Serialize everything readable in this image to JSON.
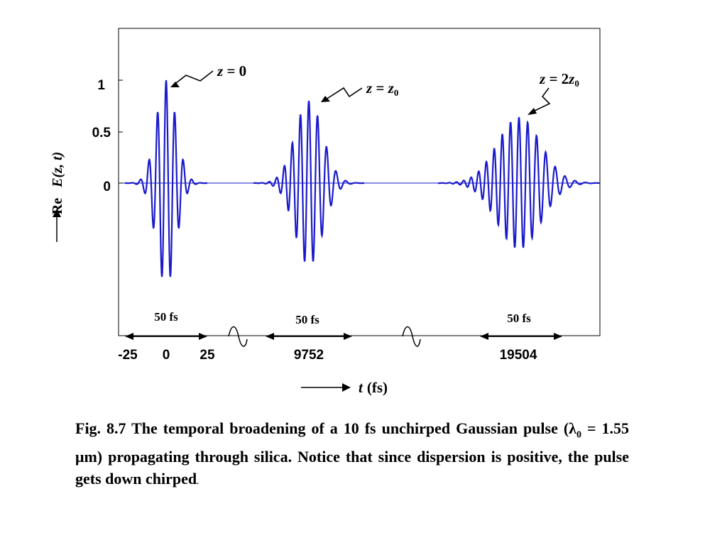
{
  "chart_data": {
    "type": "line",
    "ylabel_prefix": "Re",
    "ylabel_func": "E",
    "ylabel_args": "(z, t)",
    "xlabel_var": "t",
    "xlabel_unit": "(fs)",
    "ylim": [
      -1,
      1
    ],
    "yticks": [
      "1",
      "0.5",
      "0"
    ],
    "yticks_values": [
      1,
      0.5,
      0
    ],
    "xtick_labels": [
      "-25",
      "0",
      "25",
      "9752",
      "19504"
    ],
    "xtick_values": [
      -25,
      0,
      25,
      9752,
      19504
    ],
    "axis_breaks": 2,
    "carrier_period_fs": 5.2,
    "series": [
      {
        "label_var": "z",
        "label_eq": " = ",
        "label_rhs": "0",
        "label_sub": "",
        "center_fs": 0,
        "peak": 1.0,
        "duration_fs": 10,
        "span_label": "50 fs"
      },
      {
        "label_var": "z",
        "label_eq": " = ",
        "label_rhs": "z",
        "label_sub": "0",
        "center_fs": 9752,
        "peak": 0.8,
        "duration_fs": 14,
        "span_label": "50 fs"
      },
      {
        "label_var": "z",
        "label_eq": " = 2",
        "label_rhs": "z",
        "label_sub": "0",
        "center_fs": 19504,
        "peak": 0.64,
        "duration_fs": 22,
        "span_label": "50 fs"
      }
    ]
  },
  "caption": {
    "part1": "Fig. 8.7 The temporal broadening of a 10 fs unchirped Gaussian pulse (",
    "lambda": "λ",
    "lambda_sub": "0",
    "part2": " = 1.55 ",
    "mu": "μ",
    "part3": "m) propagating through silica. Notice that since dispersion is positive, the pulse gets down chirped",
    "period": "."
  },
  "colors": {
    "trace": "#1a1acc",
    "axis": "#000000"
  }
}
